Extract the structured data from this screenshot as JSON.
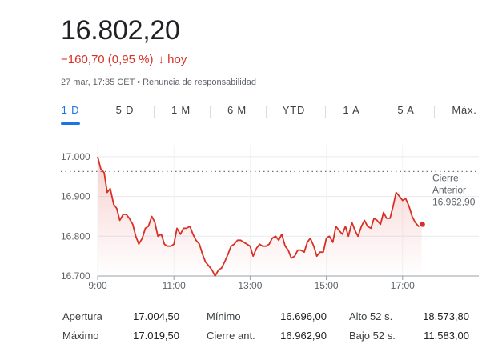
{
  "quote": {
    "price": "16.802,20",
    "change": "−160,70 (0,95 %)",
    "direction_icon": "arrow-down-icon",
    "period": "hoy",
    "timestamp": "27 mar, 17:35 CET",
    "separator": "•",
    "disclaimer": "Renuncia de responsabilidad"
  },
  "colors": {
    "negative": "#d93025",
    "accent": "#1a73e8",
    "text": "#202124"
  },
  "tabs": [
    {
      "label": "1 D",
      "active": true
    },
    {
      "label": "5 D",
      "active": false
    },
    {
      "label": "1 M",
      "active": false
    },
    {
      "label": "6 M",
      "active": false
    },
    {
      "label": "YTD",
      "active": false
    },
    {
      "label": "1 A",
      "active": false
    },
    {
      "label": "5 A",
      "active": false
    },
    {
      "label": "Máx.",
      "active": false
    }
  ],
  "chart_data": {
    "type": "line",
    "y_ticks": [
      "17.000",
      "16.900",
      "16.800",
      "16.700"
    ],
    "y_tick_values": [
      17000,
      16900,
      16800,
      16700
    ],
    "ylim": [
      16700,
      17030
    ],
    "x_ticks": [
      "9:00",
      "11:00",
      "13:00",
      "15:00",
      "17:00"
    ],
    "x_tick_hours": [
      9,
      11,
      13,
      15,
      17
    ],
    "xlim": [
      9,
      19
    ],
    "grid": true,
    "reference_line": {
      "label_lines": [
        "Cierre",
        "Anterior",
        "16.962,90"
      ],
      "value": 16962.9
    },
    "series": [
      {
        "color": "#d93025",
        "x": [
          9.0,
          9.08,
          9.17,
          9.25,
          9.33,
          9.42,
          9.5,
          9.58,
          9.67,
          9.75,
          9.83,
          9.92,
          10.0,
          10.08,
          10.17,
          10.25,
          10.33,
          10.42,
          10.5,
          10.58,
          10.67,
          10.75,
          10.83,
          10.92,
          11.0,
          11.08,
          11.17,
          11.25,
          11.33,
          11.42,
          11.5,
          11.58,
          11.67,
          11.75,
          11.83,
          11.92,
          12.0,
          12.08,
          12.17,
          12.25,
          12.33,
          12.42,
          12.5,
          12.58,
          12.67,
          12.75,
          12.83,
          12.92,
          13.0,
          13.08,
          13.17,
          13.25,
          13.33,
          13.42,
          13.5,
          13.58,
          13.67,
          13.75,
          13.83,
          13.92,
          14.0,
          14.08,
          14.17,
          14.25,
          14.33,
          14.42,
          14.5,
          14.58,
          14.67,
          14.75,
          14.83,
          14.92,
          15.0,
          15.08,
          15.17,
          15.25,
          15.33,
          15.42,
          15.5,
          15.58,
          15.67,
          15.75,
          15.83,
          15.92,
          16.0,
          16.08,
          16.17,
          16.25,
          16.33,
          16.42,
          16.5,
          16.58,
          16.67,
          16.75,
          16.83,
          16.92,
          17.0,
          17.08,
          17.17,
          17.25,
          17.33,
          17.42,
          17.5
        ],
        "y": [
          17000,
          16970,
          16960,
          16910,
          16920,
          16880,
          16870,
          16840,
          16855,
          16855,
          16845,
          16830,
          16800,
          16780,
          16795,
          16820,
          16825,
          16850,
          16835,
          16800,
          16805,
          16780,
          16775,
          16775,
          16780,
          16820,
          16805,
          16820,
          16820,
          16825,
          16805,
          16790,
          16780,
          16755,
          16735,
          16725,
          16715,
          16700,
          16715,
          16720,
          16735,
          16755,
          16775,
          16780,
          16790,
          16790,
          16785,
          16780,
          16775,
          16750,
          16770,
          16780,
          16775,
          16775,
          16780,
          16795,
          16800,
          16790,
          16805,
          16775,
          16765,
          16745,
          16750,
          16765,
          16765,
          16760,
          16785,
          16795,
          16775,
          16750,
          16760,
          16760,
          16795,
          16800,
          16785,
          16825,
          16815,
          16805,
          16825,
          16800,
          16835,
          16815,
          16800,
          16825,
          16840,
          16825,
          16820,
          16845,
          16840,
          16830,
          16860,
          16845,
          16845,
          16875,
          16910,
          16900,
          16890,
          16895,
          16875,
          16850,
          16835,
          16825,
          16830
        ]
      }
    ]
  },
  "stats": [
    {
      "label": "Apertura",
      "value": "17.004,50"
    },
    {
      "label": "Máximo",
      "value": "17.019,50"
    },
    {
      "label": "Mínimo",
      "value": "16.696,00"
    },
    {
      "label": "Cierre ant.",
      "value": "16.962,90"
    },
    {
      "label": "Alto 52 s.",
      "value": "18.573,80"
    },
    {
      "label": "Bajo 52 s.",
      "value": "11.583,00"
    }
  ]
}
